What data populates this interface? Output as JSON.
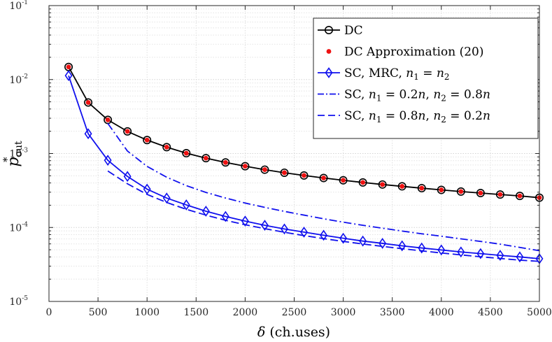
{
  "chart_data": {
    "type": "line",
    "yscale": "log",
    "xlabel": "δ (ch.uses)",
    "xlabel_symbol": "δ",
    "xlabel_rest": "(ch.uses)",
    "ylabel_base": "p",
    "ylabel_sup": "*",
    "ylabel_sub": "out",
    "xlim": [
      0,
      5000
    ],
    "ylim": [
      1e-05,
      0.1
    ],
    "grid": true,
    "legend_position": "top-right",
    "x_ticks": [
      "0",
      "500",
      "1000",
      "1500",
      "2000",
      "2500",
      "3000",
      "3500",
      "4000",
      "4500",
      "5000"
    ],
    "y_ticks": [
      {
        "value": 1e-05,
        "base": "10",
        "exp": "-5"
      },
      {
        "value": 0.0001,
        "base": "10",
        "exp": "-4"
      },
      {
        "value": 0.001,
        "base": "10",
        "exp": "-3"
      },
      {
        "value": 0.01,
        "base": "10",
        "exp": "-2"
      },
      {
        "value": 0.1,
        "base": "10",
        "exp": "-1"
      }
    ],
    "series": [
      {
        "name": "DC",
        "legend": [
          {
            "t": "DC"
          }
        ],
        "color": "#000000",
        "style": "solid",
        "marker": "circle",
        "x": [
          200,
          400,
          600,
          800,
          1000,
          1200,
          1400,
          1600,
          1800,
          2000,
          2200,
          2400,
          2600,
          2800,
          3000,
          3200,
          3400,
          3600,
          3800,
          4000,
          4200,
          4400,
          4600,
          4800,
          5000
        ],
        "y": [
          0.0148,
          0.0049,
          0.00285,
          0.00199,
          0.00152,
          0.00122,
          0.00101,
          0.000866,
          0.000757,
          0.000674,
          0.000605,
          0.00055,
          0.000505,
          0.000467,
          0.000435,
          0.000406,
          0.000381,
          0.00036,
          0.00034,
          0.000322,
          0.000306,
          0.000292,
          0.000279,
          0.000267,
          0.000253
        ]
      },
      {
        "name": "DC Approximation (20)",
        "legend": [
          {
            "t": "DC Approximation (20)"
          }
        ],
        "color": "#ee1111",
        "style": "none",
        "marker": "dot",
        "x": [
          200,
          400,
          600,
          800,
          1000,
          1200,
          1400,
          1600,
          1800,
          2000,
          2200,
          2400,
          2600,
          2800,
          3000,
          3200,
          3400,
          3600,
          3800,
          4000,
          4200,
          4400,
          4600,
          4800,
          5000
        ],
        "y": [
          0.0148,
          0.0049,
          0.00285,
          0.00199,
          0.00152,
          0.00122,
          0.00101,
          0.000866,
          0.000757,
          0.000674,
          0.000605,
          0.00055,
          0.000505,
          0.000467,
          0.000435,
          0.000406,
          0.000381,
          0.00036,
          0.00034,
          0.000322,
          0.000306,
          0.000292,
          0.000279,
          0.000267,
          0.000253
        ]
      },
      {
        "name": "SC, MRC, n1 = n2",
        "legend": [
          {
            "t": "SC, MRC, "
          },
          {
            "t": "n",
            "i": true
          },
          {
            "t": "1",
            "sub": true
          },
          {
            "t": " = "
          },
          {
            "t": "n",
            "i": true
          },
          {
            "t": "2",
            "sub": true
          }
        ],
        "color": "#1010ee",
        "style": "solid",
        "marker": "diamond",
        "x": [
          200,
          400,
          600,
          800,
          1000,
          1200,
          1400,
          1600,
          1800,
          2000,
          2200,
          2400,
          2600,
          2800,
          3000,
          3200,
          3400,
          3600,
          3800,
          4000,
          4200,
          4400,
          4600,
          4800,
          5000
        ],
        "y": [
          0.0113,
          0.00185,
          0.00081,
          0.00049,
          0.00033,
          0.00025,
          0.000202,
          0.000166,
          0.000141,
          0.000122,
          0.000107,
          9.55e-05,
          8.65e-05,
          7.85e-05,
          7.15e-05,
          6.55e-05,
          6.1e-05,
          5.65e-05,
          5.28e-05,
          4.97e-05,
          4.67e-05,
          4.43e-05,
          4.2e-05,
          4e-05,
          3.78e-05
        ]
      },
      {
        "name": "SC, n1 = 0.2n, n2 = 0.8n",
        "legend": [
          {
            "t": "SC, "
          },
          {
            "t": "n",
            "i": true
          },
          {
            "t": "1",
            "sub": true
          },
          {
            "t": " = 0.2"
          },
          {
            "t": "n",
            "i": true
          },
          {
            "t": ", "
          },
          {
            "t": "n",
            "i": true
          },
          {
            "t": "2",
            "sub": true
          },
          {
            "t": " = 0.8"
          },
          {
            "t": "n",
            "i": true
          }
        ],
        "color": "#1010ee",
        "style": "dashdot",
        "marker": "none",
        "x": [
          600,
          800,
          1000,
          1200,
          1400,
          1600,
          1800,
          2000,
          2200,
          2400,
          2600,
          2800,
          3000,
          3200,
          3400,
          3600,
          3800,
          4000,
          4200,
          4400,
          4600,
          4800,
          5000
        ],
        "y": [
          0.00255,
          0.00108,
          0.00067,
          0.000478,
          0.000368,
          0.000298,
          0.00025,
          0.000214,
          0.000187,
          0.000165,
          0.000147,
          0.000131,
          0.000118,
          0.000107,
          9.78e-05,
          8.95e-05,
          8.22e-05,
          7.62e-05,
          7.02e-05,
          6.48e-05,
          5.95e-05,
          5.38e-05,
          4.85e-05
        ]
      },
      {
        "name": "SC, n1 = 0.8n, n2 = 0.2n",
        "legend": [
          {
            "t": "SC, "
          },
          {
            "t": "n",
            "i": true
          },
          {
            "t": "1",
            "sub": true
          },
          {
            "t": " = 0.8"
          },
          {
            "t": "n",
            "i": true
          },
          {
            "t": ", "
          },
          {
            "t": "n",
            "i": true
          },
          {
            "t": "2",
            "sub": true
          },
          {
            "t": " = 0.2"
          },
          {
            "t": "n",
            "i": true
          }
        ],
        "color": "#1010ee",
        "style": "dashed",
        "marker": "none",
        "x": [
          600,
          800,
          1000,
          1200,
          1400,
          1600,
          1800,
          2000,
          2200,
          2400,
          2600,
          2800,
          3000,
          3200,
          3400,
          3600,
          3800,
          4000,
          4200,
          4400,
          4600,
          4800,
          5000
        ],
        "y": [
          0.00058,
          0.00039,
          0.00028,
          0.000218,
          0.000176,
          0.000147,
          0.000125,
          0.000109,
          9.63e-05,
          8.62e-05,
          7.77e-05,
          7.07e-05,
          6.48e-05,
          5.98e-05,
          5.55e-05,
          5.17e-05,
          4.83e-05,
          4.52e-05,
          4.26e-05,
          4.02e-05,
          3.81e-05,
          3.62e-05,
          3.48e-05
        ]
      }
    ]
  }
}
